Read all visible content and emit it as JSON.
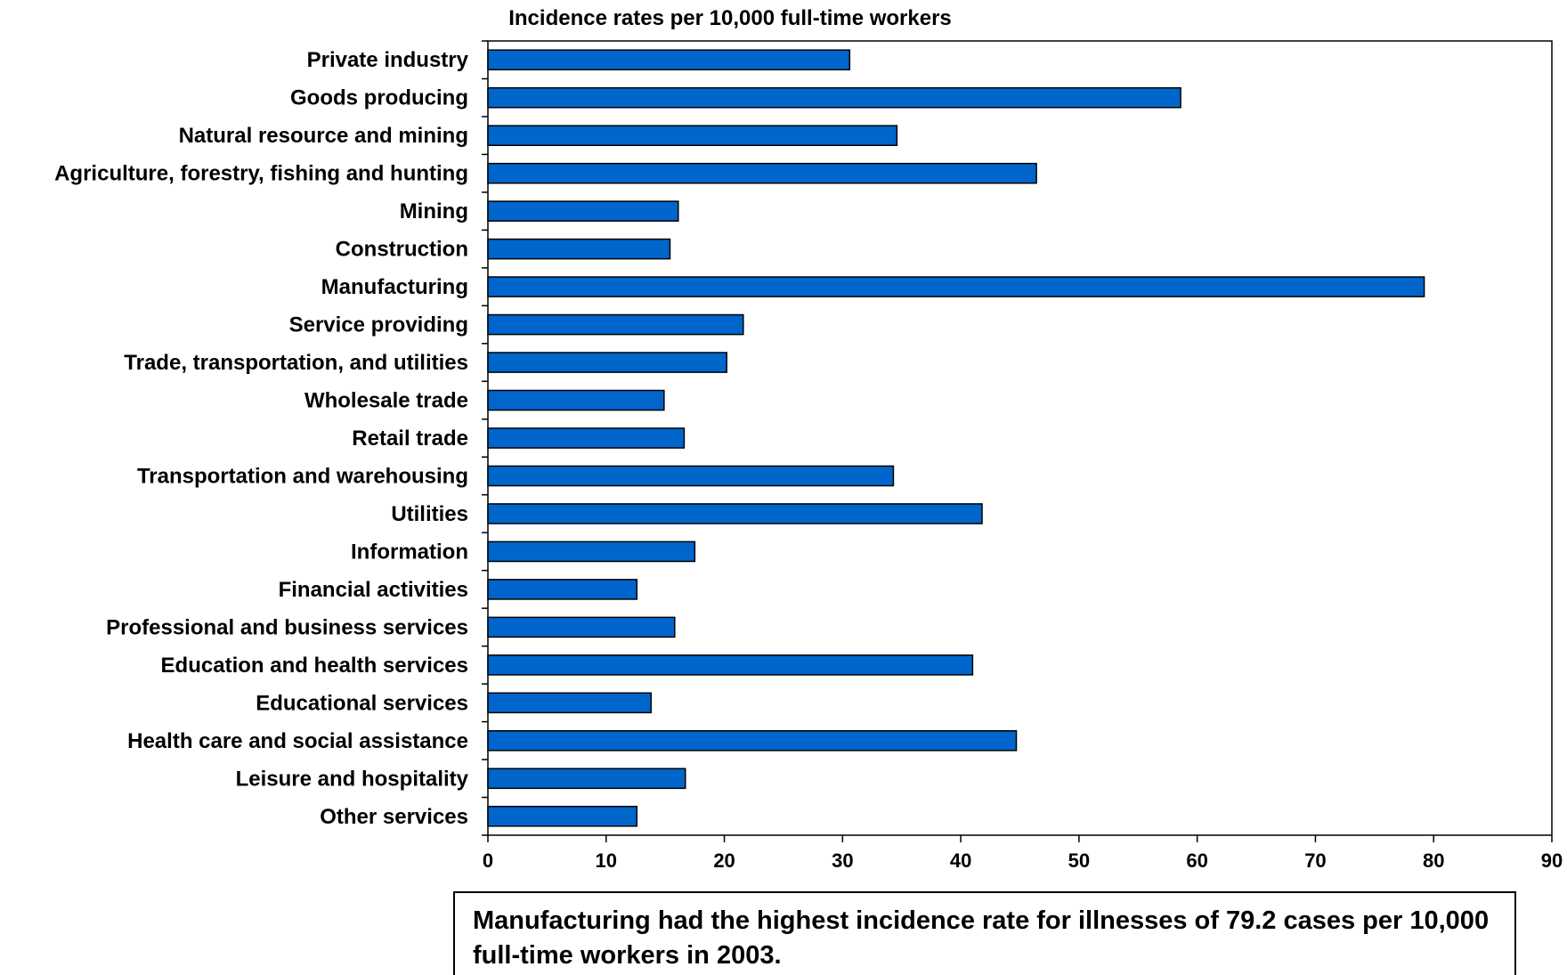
{
  "chart_data": {
    "type": "bar",
    "orientation": "horizontal",
    "title": "Incidence rates per 10,000 full-time workers",
    "categories": [
      "Private industry",
      "Goods producing",
      "Natural resource and mining",
      "Agriculture, forestry, fishing and hunting",
      "Mining",
      "Construction",
      "Manufacturing",
      "Service providing",
      "Trade, transportation, and utilities",
      "Wholesale trade",
      "Retail trade",
      "Transportation and warehousing",
      "Utilities",
      "Information",
      "Financial activities",
      "Professional and business services",
      "Education and health services",
      "Educational services",
      "Health care and social assistance",
      "Leisure and hospitality",
      "Other services"
    ],
    "values": [
      30.6,
      58.6,
      34.6,
      46.4,
      16.1,
      15.4,
      79.2,
      21.6,
      20.2,
      14.9,
      16.6,
      34.3,
      41.8,
      17.5,
      12.6,
      15.8,
      41.0,
      13.8,
      44.7,
      16.7,
      12.6
    ],
    "xlim": [
      0,
      90
    ],
    "xticks": [
      0,
      10,
      20,
      30,
      40,
      50,
      60,
      70,
      80,
      90
    ],
    "xlabel": "",
    "ylabel": "",
    "grid": false,
    "bar_color": "#0066CC",
    "bar_edge_color": "#000000"
  },
  "note": {
    "text": "Manufacturing had the highest incidence rate for illnesses of 79.2 cases per 10,000 full-time workers in 2003."
  }
}
